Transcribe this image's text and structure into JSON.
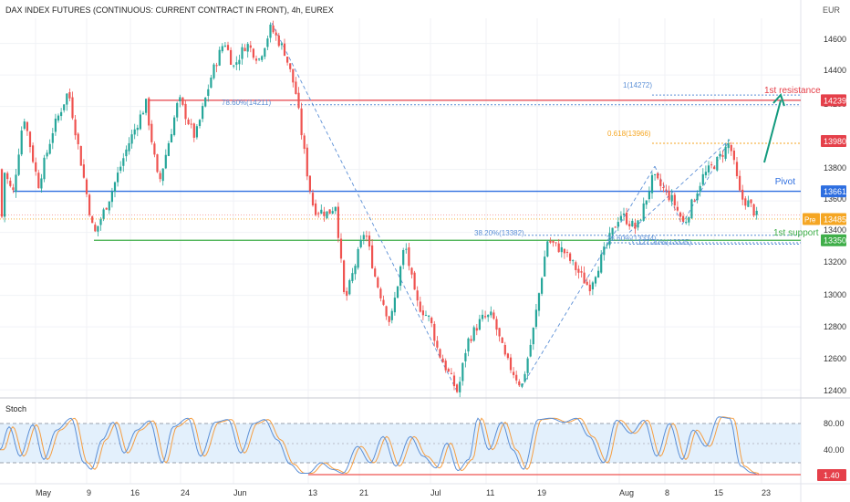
{
  "header": {
    "title": "DAX INDEX FUTURES (CONTINUOUS: CURRENT CONTRACT IN FRONT), 4h, EUREX"
  },
  "currency": "EUR",
  "oscillator": {
    "name": "Stoch",
    "current_value": "1.40"
  },
  "x_tick_labels": [
    "May",
    "9",
    "16",
    "24",
    "Jun",
    "13",
    "21",
    "Jul",
    "11",
    "19",
    "Aug",
    "8",
    "15",
    "23"
  ],
  "price_tick_labels": [
    "14600",
    "14400",
    "14200",
    "13800",
    "13600",
    "13400",
    "13200",
    "13000",
    "12800",
    "12600",
    "12400"
  ],
  "osc_tick_labels": [
    "80.00",
    "40.00"
  ],
  "price_badges": [
    {
      "label": "14239",
      "price": 14239,
      "color": "#e5404a"
    },
    {
      "label": "13980",
      "price": 13980,
      "color": "#e5404a"
    },
    {
      "label": "13661",
      "price": 13661,
      "color": "#2d6ee0"
    },
    {
      "label": "13485",
      "price": 13485,
      "color": "#f5a623",
      "tag": "Pre"
    },
    {
      "label": "13350",
      "price": 13350,
      "color": "#3fae49"
    }
  ],
  "annotations": {
    "resistance": "1st resistance",
    "pivot": "Pivot",
    "support": "1st support",
    "fib_100": "1(14272)",
    "fib_786": "78.60%(14211)",
    "fib_618": "0.618(13966)",
    "fib_382": "38.20%(13382)",
    "fib_236a": "23.60%(13334)",
    "fib_1272": "127.20%(13325)"
  },
  "colors": {
    "up": "#26a69a",
    "down": "#ef5350",
    "resistance": "#e5404a",
    "pivot": "#2d6ee0",
    "support": "#3fae49",
    "fib_blue": "#5b8fd6",
    "fib_orange": "#f5a623",
    "stoch_k": "#5b8fd6",
    "stoch_d": "#f59e42",
    "arrow": "#129a7e"
  },
  "chart_data": {
    "type": "candlestick",
    "timeframe": "4h",
    "y_axis": {
      "unit": "EUR",
      "range": [
        12360,
        14760
      ],
      "ticks": [
        12400,
        12600,
        12800,
        13000,
        13200,
        13400,
        13600,
        13800,
        14200,
        14400,
        14600
      ]
    },
    "levels": [
      {
        "name": "1st resistance",
        "value": 14239
      },
      {
        "name": "Pivot",
        "value": 13661
      },
      {
        "name": "1st support",
        "value": 13350
      },
      {
        "name": "Pre-market",
        "value": 13485
      }
    ],
    "fibonacci": [
      {
        "label": "1",
        "value": 14272
      },
      {
        "label": "78.60%",
        "value": 14211
      },
      {
        "label": "0.618",
        "value": 13966
      },
      {
        "label": "38.20%",
        "value": 13382
      },
      {
        "label": "23.60%",
        "value": 13334
      },
      {
        "label": "127.20%",
        "value": 13325
      }
    ],
    "price_path": [
      {
        "date": "Apr 27",
        "close": 13800
      },
      {
        "date": "May 3",
        "close": 13640
      },
      {
        "date": "May 6",
        "close": 14150
      },
      {
        "date": "May 10",
        "close": 13380
      },
      {
        "date": "May 16",
        "close": 14050
      },
      {
        "date": "May 18",
        "close": 14220
      },
      {
        "date": "May 20",
        "close": 13700
      },
      {
        "date": "May 24",
        "close": 14350
      },
      {
        "date": "May 27",
        "close": 14600
      },
      {
        "date": "May 30",
        "close": 14500
      },
      {
        "date": "Jun 3",
        "close": 14550
      },
      {
        "date": "Jun 7",
        "close": 14700
      },
      {
        "date": "Jun 9",
        "close": 14420
      },
      {
        "date": "Jun 12",
        "close": 13730
      },
      {
        "date": "Jun 13",
        "close": 13500
      },
      {
        "date": "Jun 15",
        "close": 13550
      },
      {
        "date": "Jun 17",
        "close": 12950
      },
      {
        "date": "Jun 20",
        "close": 13400
      },
      {
        "date": "Jun 24",
        "close": 12800
      },
      {
        "date": "Jun 28",
        "close": 13350
      },
      {
        "date": "Jul 1",
        "close": 12840
      },
      {
        "date": "Jul 5",
        "close": 12380
      },
      {
        "date": "Jul 8",
        "close": 12800
      },
      {
        "date": "Jul 11",
        "close": 12900
      },
      {
        "date": "Jul 13",
        "close": 12600
      },
      {
        "date": "Jul 15",
        "close": 12420
      },
      {
        "date": "Jul 17",
        "close": 12750
      },
      {
        "date": "Jul 19",
        "close": 13350
      },
      {
        "date": "Jul 22",
        "close": 13280
      },
      {
        "date": "Jul 27",
        "close": 13050
      },
      {
        "date": "Jul 29",
        "close": 13360
      },
      {
        "date": "Aug 2",
        "close": 13600
      },
      {
        "date": "Aug 4",
        "close": 13450
      },
      {
        "date": "Aug 6",
        "close": 13750
      },
      {
        "date": "Aug 9",
        "close": 13600
      },
      {
        "date": "Aug 11",
        "close": 13550
      },
      {
        "date": "Aug 14",
        "close": 13800
      },
      {
        "date": "Aug 17",
        "close": 13970
      },
      {
        "date": "Aug 19",
        "close": 13620
      },
      {
        "date": "Aug 21",
        "close": 13485
      }
    ],
    "stochastic": {
      "overbought": 80,
      "oversold": 20,
      "ticks": [
        80,
        40
      ],
      "last_value": 1.4
    }
  }
}
